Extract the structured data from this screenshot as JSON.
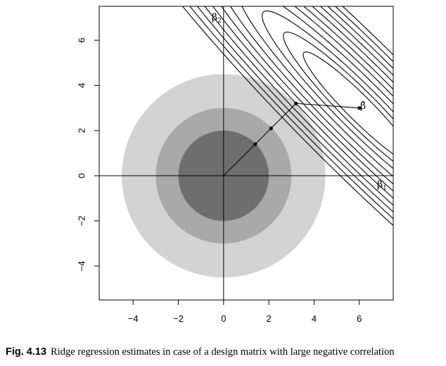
{
  "caption": {
    "figure_number": "Fig. 4.13",
    "text": "Ridge regression estimates in case of a design matrix with large negative correlation"
  },
  "chart_data": {
    "type": "contour",
    "title": "",
    "xlabel": "",
    "ylabel": "",
    "xlim": [
      -5.5,
      7.5
    ],
    "ylim": [
      -5.5,
      7.5
    ],
    "x_ticks": [
      "−4",
      "−2",
      "0",
      "2",
      "4",
      "6"
    ],
    "y_ticks": [
      "−4",
      "−2",
      "0",
      "2",
      "4",
      "6"
    ],
    "x_tick_values": [
      -4,
      -2,
      0,
      2,
      4,
      6
    ],
    "y_tick_values": [
      -4,
      -2,
      0,
      2,
      4,
      6
    ],
    "axis_labels": {
      "beta1": "β",
      "beta1_sub": "1",
      "beta2": "β",
      "beta2_sub": "2",
      "beta_hat": "β̂"
    },
    "disks": [
      {
        "radius": 4.5,
        "color": "#d3d3d3"
      },
      {
        "radius": 3.0,
        "color": "#a9a9a9"
      },
      {
        "radius": 2.0,
        "color": "#6e6e6e"
      }
    ],
    "estimate": {
      "x": 6.0,
      "y": 3.0
    },
    "ridge_path": [
      {
        "x": 0.0,
        "y": 0.0
      },
      {
        "x": 1.4,
        "y": 1.4
      },
      {
        "x": 2.1,
        "y": 2.1
      },
      {
        "x": 3.2,
        "y": 3.2
      },
      {
        "x": 6.0,
        "y": 3.0
      }
    ],
    "ridge_points": [
      {
        "x": 1.4,
        "y": 1.4
      },
      {
        "x": 2.1,
        "y": 2.1
      },
      {
        "x": 3.2,
        "y": 3.2
      }
    ],
    "contour_levels": [
      0.6,
      1.1,
      1.8,
      2.8,
      4.0,
      5.3,
      6.8,
      8.5,
      10.3,
      12.3,
      14.5
    ]
  }
}
